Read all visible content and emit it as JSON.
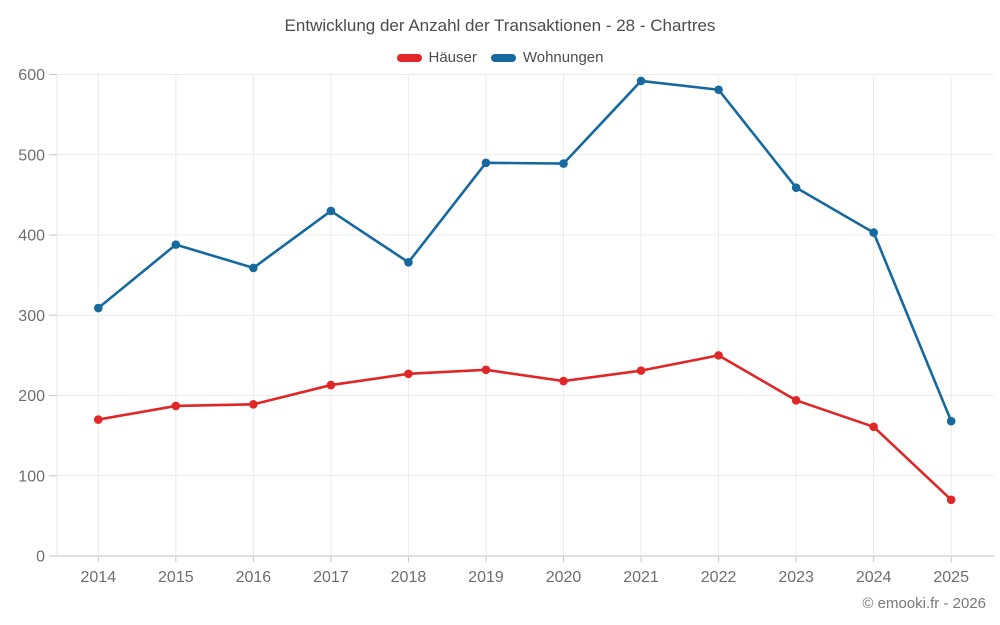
{
  "chart_title": "Entwicklung der Anzahl der Transaktionen - 28 - Chartres",
  "footer": {
    "copyright": "© emooki.fr - 2026"
  },
  "colors": {
    "hauser": "#e02626",
    "wohnungen": "#16699e",
    "grid": "#ececec",
    "axis_bottom": "#c2c2c2",
    "axis_left": "#e3e3e3",
    "tick": "#c6c6c6",
    "tick_label": "#6e6e6e"
  },
  "chart_data": {
    "type": "line",
    "title": "Entwicklung der Anzahl der Transaktionen - 28 - Chartres",
    "xlabel": "",
    "ylabel": "",
    "categories": [
      "2014",
      "2015",
      "2016",
      "2017",
      "2018",
      "2019",
      "2020",
      "2021",
      "2022",
      "2023",
      "2024",
      "2025"
    ],
    "series": [
      {
        "name": "Häuser",
        "color": "#e02626",
        "values": [
          170,
          187,
          189,
          213,
          227,
          232,
          218,
          231,
          250,
          194,
          161,
          70
        ]
      },
      {
        "name": "Wohnungen",
        "color": "#16699e",
        "values": [
          309,
          388,
          359,
          430,
          366,
          490,
          489,
          592,
          581,
          459,
          403,
          168
        ]
      }
    ],
    "ylim": [
      0,
      600
    ],
    "yticks": [
      0,
      100,
      200,
      300,
      400,
      500,
      600
    ],
    "grid": true,
    "legend_position": "top-center"
  }
}
